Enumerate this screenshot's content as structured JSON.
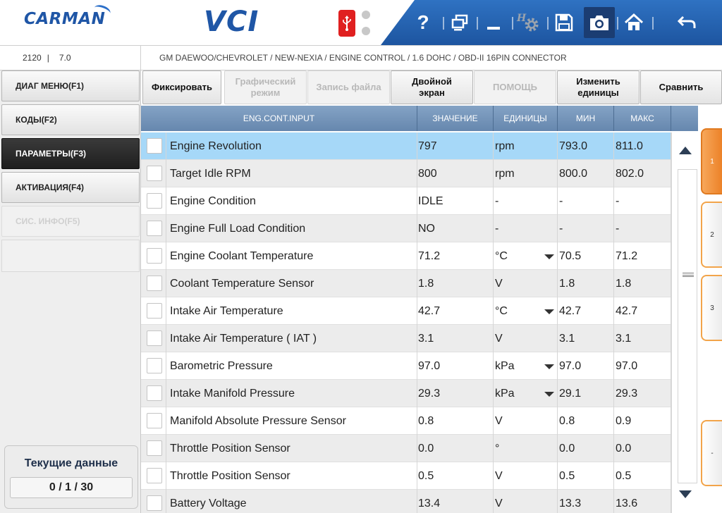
{
  "header": {
    "logo_carman": "CARMAN",
    "logo_vci": "VCI",
    "icons": [
      "help-icon",
      "screens-icon",
      "minimize-icon",
      "settings-icon",
      "save-icon",
      "camera-icon",
      "home-icon",
      "back-icon"
    ],
    "help_label": "?"
  },
  "infobar": {
    "code": "2120",
    "separator": "|",
    "version": "7.0",
    "path": "GM DAEWOO/CHEVROLET / NEW-NEXIA / ENGINE CONTROL / 1.6 DOHC / OBD-II 16PIN CONNECTOR"
  },
  "sidebar": {
    "items": [
      {
        "label": "ДИАГ МЕНЮ(F1)",
        "state": "normal"
      },
      {
        "label": "КОДЫ(F2)",
        "state": "normal"
      },
      {
        "label": "ПАРАМЕТРЫ(F3)",
        "state": "active"
      },
      {
        "label": "АКТИВАЦИЯ(F4)",
        "state": "normal"
      },
      {
        "label": "СИС. ИНФО(F5)",
        "state": "disabled"
      }
    ],
    "current_title": "Текущие данные",
    "current_count": "0 / 1 / 30"
  },
  "functions": {
    "fix": "Фиксировать",
    "graph": "Графический режим",
    "record": "Запись файла",
    "double": "Двойной экран",
    "help": "ПОМОЩЬ",
    "units": "Изменить единицы",
    "compare": "Сравнить"
  },
  "table": {
    "headers": {
      "name": "ENG.CONT.INPUT",
      "value": "ЗНАЧЕНИЕ",
      "unit": "ЕДИНИЦЫ",
      "min": "МИН",
      "max": "МАКС"
    },
    "rows": [
      {
        "name": "Engine Revolution",
        "value": "797",
        "unit": "rpm",
        "min": "793.0",
        "max": "811.0",
        "dropdown": false
      },
      {
        "name": "Target Idle RPM",
        "value": "800",
        "unit": "rpm",
        "min": "800.0",
        "max": "802.0",
        "dropdown": false
      },
      {
        "name": "Engine Condition",
        "value": "IDLE",
        "unit": "-",
        "min": "-",
        "max": "-",
        "dropdown": false
      },
      {
        "name": "Engine Full Load Condition",
        "value": "NO",
        "unit": "-",
        "min": "-",
        "max": "-",
        "dropdown": false
      },
      {
        "name": "Engine Coolant Temperature",
        "value": "71.2",
        "unit": "°C",
        "min": "70.5",
        "max": "71.2",
        "dropdown": true
      },
      {
        "name": "Coolant Temperature Sensor",
        "value": "1.8",
        "unit": "V",
        "min": "1.8",
        "max": "1.8",
        "dropdown": false
      },
      {
        "name": "Intake Air Temperature",
        "value": "42.7",
        "unit": "°C",
        "min": "42.7",
        "max": "42.7",
        "dropdown": true
      },
      {
        "name": "Intake Air Temperature ( IAT )",
        "value": "3.1",
        "unit": "V",
        "min": "3.1",
        "max": "3.1",
        "dropdown": false
      },
      {
        "name": "Barometric Pressure",
        "value": "97.0",
        "unit": "kPa",
        "min": "97.0",
        "max": "97.0",
        "dropdown": true
      },
      {
        "name": "Intake Manifold Pressure",
        "value": "29.3",
        "unit": "kPa",
        "min": "29.1",
        "max": "29.3",
        "dropdown": true
      },
      {
        "name": "Manifold Absolute Pressure Sensor",
        "value": "0.8",
        "unit": "V",
        "min": "0.8",
        "max": "0.9",
        "dropdown": false
      },
      {
        "name": "Throttle Position Sensor",
        "value": "0.0",
        "unit": "°",
        "min": "0.0",
        "max": "0.0",
        "dropdown": false
      },
      {
        "name": "Throttle Position Sensor",
        "value": "0.5",
        "unit": "V",
        "min": "0.5",
        "max": "0.5",
        "dropdown": false
      },
      {
        "name": "Battery Voltage",
        "value": "13.4",
        "unit": "V",
        "min": "13.3",
        "max": "13.6",
        "dropdown": false
      }
    ],
    "selected_row": 0
  },
  "page_tabs": [
    {
      "label": "1",
      "active": true
    },
    {
      "label": "2",
      "active": false
    },
    {
      "label": "3",
      "active": false
    },
    {
      "label": "-",
      "active": false
    }
  ],
  "colors": {
    "brand_blue": "#1f56a6",
    "toolbar_blue": "#2f72c2",
    "header_row": "#7696ba",
    "selected_row": "#a6d8f8",
    "tab_orange": "#ec8228"
  }
}
